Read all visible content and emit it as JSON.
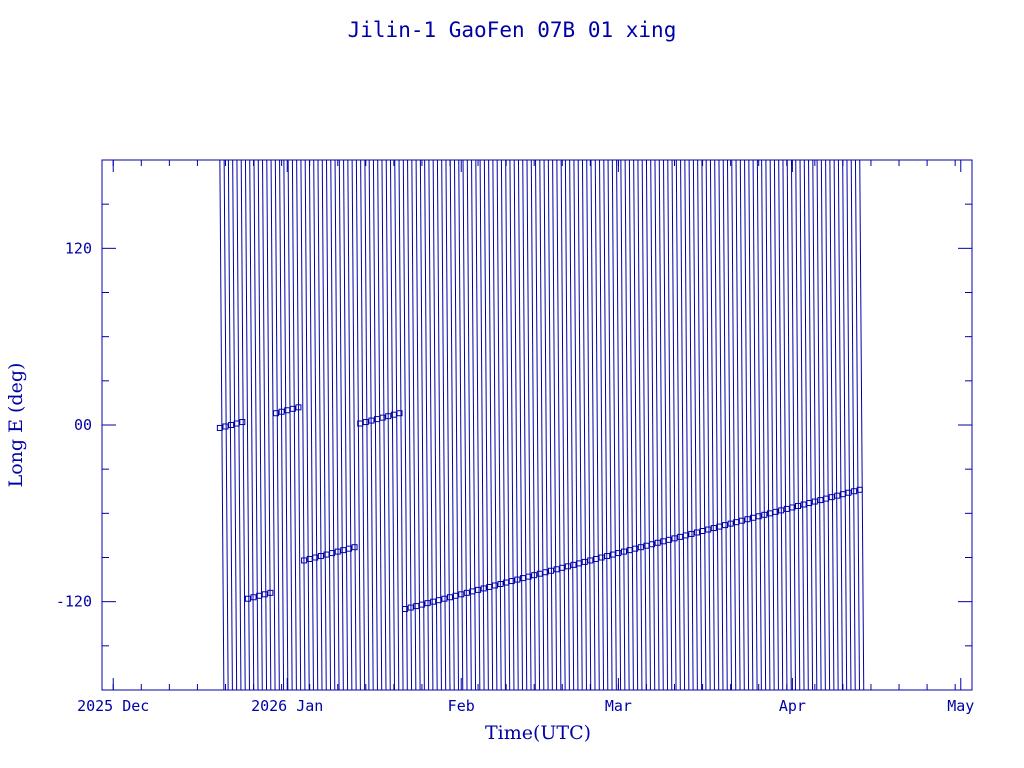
{
  "colors": {
    "ink": "#0000a8",
    "background": "#ffffff"
  },
  "chart_data": {
    "type": "line",
    "title": "Jilin-1 GaoFen 07B 01 xing",
    "xlabel": "Time(UTC)",
    "ylabel": "Long E (deg)",
    "x_tick_labels": [
      "2025 Dec",
      "2026 Jan",
      "Feb",
      "Mar",
      "Apr",
      "May"
    ],
    "x_tick_dates": [
      "2025-12-01",
      "2026-01-01",
      "2026-02-01",
      "2026-03-01",
      "2026-04-01",
      "2026-05-01"
    ],
    "y_tick_labels": [
      "-120",
      "00",
      "120"
    ],
    "y_tick_values": [
      -120,
      0,
      120
    ],
    "xlim": [
      "2025-11-29",
      "2026-05-03"
    ],
    "ylim": [
      -180,
      180
    ],
    "grid": false,
    "marker": "square",
    "data_span": [
      "2025-12-20",
      "2026-04-13"
    ],
    "series": [
      {
        "x": [
          "2025-12-20",
          "2025-12-21",
          "2025-12-22",
          "2025-12-23",
          "2025-12-24",
          "2025-12-25",
          "2025-12-26",
          "2025-12-27",
          "2025-12-28",
          "2025-12-29",
          "2025-12-30",
          "2025-12-31",
          "2026-01-01",
          "2026-01-02",
          "2026-01-03",
          "2026-01-04",
          "2026-01-05",
          "2026-01-06",
          "2026-01-07",
          "2026-01-08",
          "2026-01-09",
          "2026-01-10",
          "2026-01-11",
          "2026-01-12",
          "2026-01-13",
          "2026-01-14",
          "2026-01-15",
          "2026-01-16",
          "2026-01-17",
          "2026-01-18",
          "2026-01-19",
          "2026-01-20",
          "2026-01-21",
          "2026-01-22",
          "2026-01-23",
          "2026-01-24",
          "2026-01-25",
          "2026-01-26",
          "2026-01-27",
          "2026-01-28",
          "2026-01-29",
          "2026-01-30",
          "2026-01-31",
          "2026-02-01",
          "2026-02-02",
          "2026-02-03",
          "2026-02-04",
          "2026-02-05",
          "2026-02-06",
          "2026-02-07",
          "2026-02-08",
          "2026-02-09",
          "2026-02-10",
          "2026-02-11",
          "2026-02-12",
          "2026-02-13",
          "2026-02-14",
          "2026-02-15",
          "2026-02-16",
          "2026-02-17",
          "2026-02-18",
          "2026-02-19",
          "2026-02-20",
          "2026-02-21",
          "2026-02-22",
          "2026-02-23",
          "2026-02-24",
          "2026-02-25",
          "2026-02-26",
          "2026-02-27",
          "2026-02-28",
          "2026-03-01",
          "2026-03-02",
          "2026-03-03",
          "2026-03-04",
          "2026-03-05",
          "2026-03-06",
          "2026-03-07",
          "2026-03-08",
          "2026-03-09",
          "2026-03-10",
          "2026-03-11",
          "2026-03-12",
          "2026-03-13",
          "2026-03-14",
          "2026-03-15",
          "2026-03-16",
          "2026-03-17",
          "2026-03-18",
          "2026-03-19",
          "2026-03-20",
          "2026-03-21",
          "2026-03-22",
          "2026-03-23",
          "2026-03-24",
          "2026-03-25",
          "2026-03-26",
          "2026-03-27",
          "2026-03-28",
          "2026-03-29",
          "2026-03-30",
          "2026-03-31",
          "2026-04-01",
          "2026-04-02",
          "2026-04-03",
          "2026-04-04",
          "2026-04-05",
          "2026-04-06",
          "2026-04-07",
          "2026-04-08",
          "2026-04-09",
          "2026-04-10",
          "2026-04-11",
          "2026-04-12",
          "2026-04-13"
        ],
        "y": [
          -2,
          -1,
          0,
          1,
          2,
          -118,
          -117,
          -116,
          -115,
          -114,
          8,
          9,
          10,
          11,
          12,
          -92,
          -91,
          -90,
          -89,
          -88,
          -87,
          -86,
          -85,
          -84,
          -83,
          1,
          2,
          3,
          4,
          5,
          6,
          7,
          8,
          -125,
          -124,
          -123,
          -122,
          -121,
          -120,
          -119,
          -118,
          -117,
          -116,
          -115,
          -114,
          -113,
          -112,
          -111,
          -110,
          -109,
          -108,
          -107,
          -106,
          -105,
          -104,
          -103,
          -102,
          -101,
          -100,
          -99,
          -98,
          -97,
          -96,
          -95,
          -94,
          -93,
          -92,
          -91,
          -90,
          -89,
          -88,
          -87,
          -86,
          -85,
          -84,
          -83,
          -82,
          -81,
          -80,
          -79,
          -78,
          -77,
          -76,
          -75,
          -74,
          -73,
          -72,
          -71,
          -70,
          -69,
          -68,
          -67,
          -66,
          -65,
          -64,
          -63,
          -62,
          -61,
          -60,
          -59,
          -58,
          -57,
          -56,
          -55,
          -54,
          -53,
          -52,
          -51,
          -50,
          -49,
          -48,
          -47,
          -46,
          -45,
          -44
        ]
      }
    ]
  }
}
